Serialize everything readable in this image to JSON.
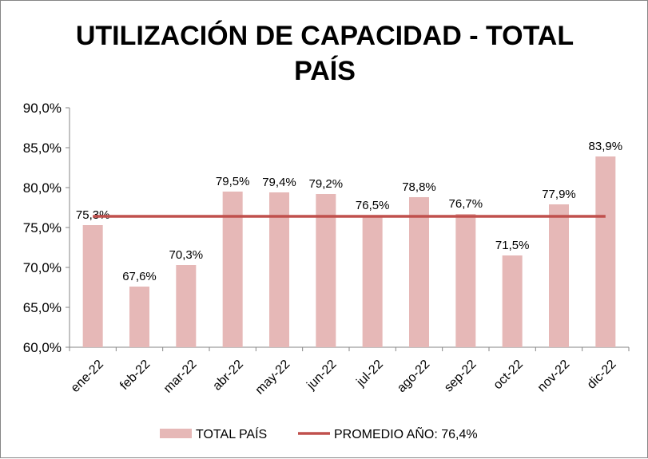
{
  "chart_data": {
    "type": "bar",
    "title": "UTILIZACIÓN DE CAPACIDAD - TOTAL PAÍS",
    "title_lines": [
      "UTILIZACIÓN DE CAPACIDAD - TOTAL",
      "PAÍS"
    ],
    "categories": [
      "ene-22",
      "feb-22",
      "mar-22",
      "abr-22",
      "may-22",
      "jun-22",
      "jul-22",
      "ago-22",
      "sep-22",
      "oct-22",
      "nov-22",
      "dic-22"
    ],
    "series": [
      {
        "name": "TOTAL PAÍS",
        "type": "bar",
        "color": "#E6B8B7",
        "values": [
          75.3,
          67.6,
          70.3,
          79.5,
          79.4,
          79.2,
          76.5,
          78.8,
          76.7,
          71.5,
          77.9,
          83.9
        ],
        "labels": [
          "75,3%",
          "67,6%",
          "70,3%",
          "79,5%",
          "79,4%",
          "79,2%",
          "76,5%",
          "78,8%",
          "76,7%",
          "71,5%",
          "77,9%",
          "83,9%"
        ]
      },
      {
        "name": "PROMEDIO AÑO: 76,4%",
        "type": "line",
        "color": "#C0504D",
        "value": 76.4
      }
    ],
    "ylim": [
      60,
      90
    ],
    "yticks": [
      60,
      65,
      70,
      75,
      80,
      85,
      90
    ],
    "ytick_labels": [
      "60,0%",
      "65,0%",
      "70,0%",
      "75,0%",
      "80,0%",
      "85,0%",
      "90,0%"
    ],
    "xlabel": "",
    "ylabel": "",
    "grid": false,
    "legend": "bottom"
  }
}
